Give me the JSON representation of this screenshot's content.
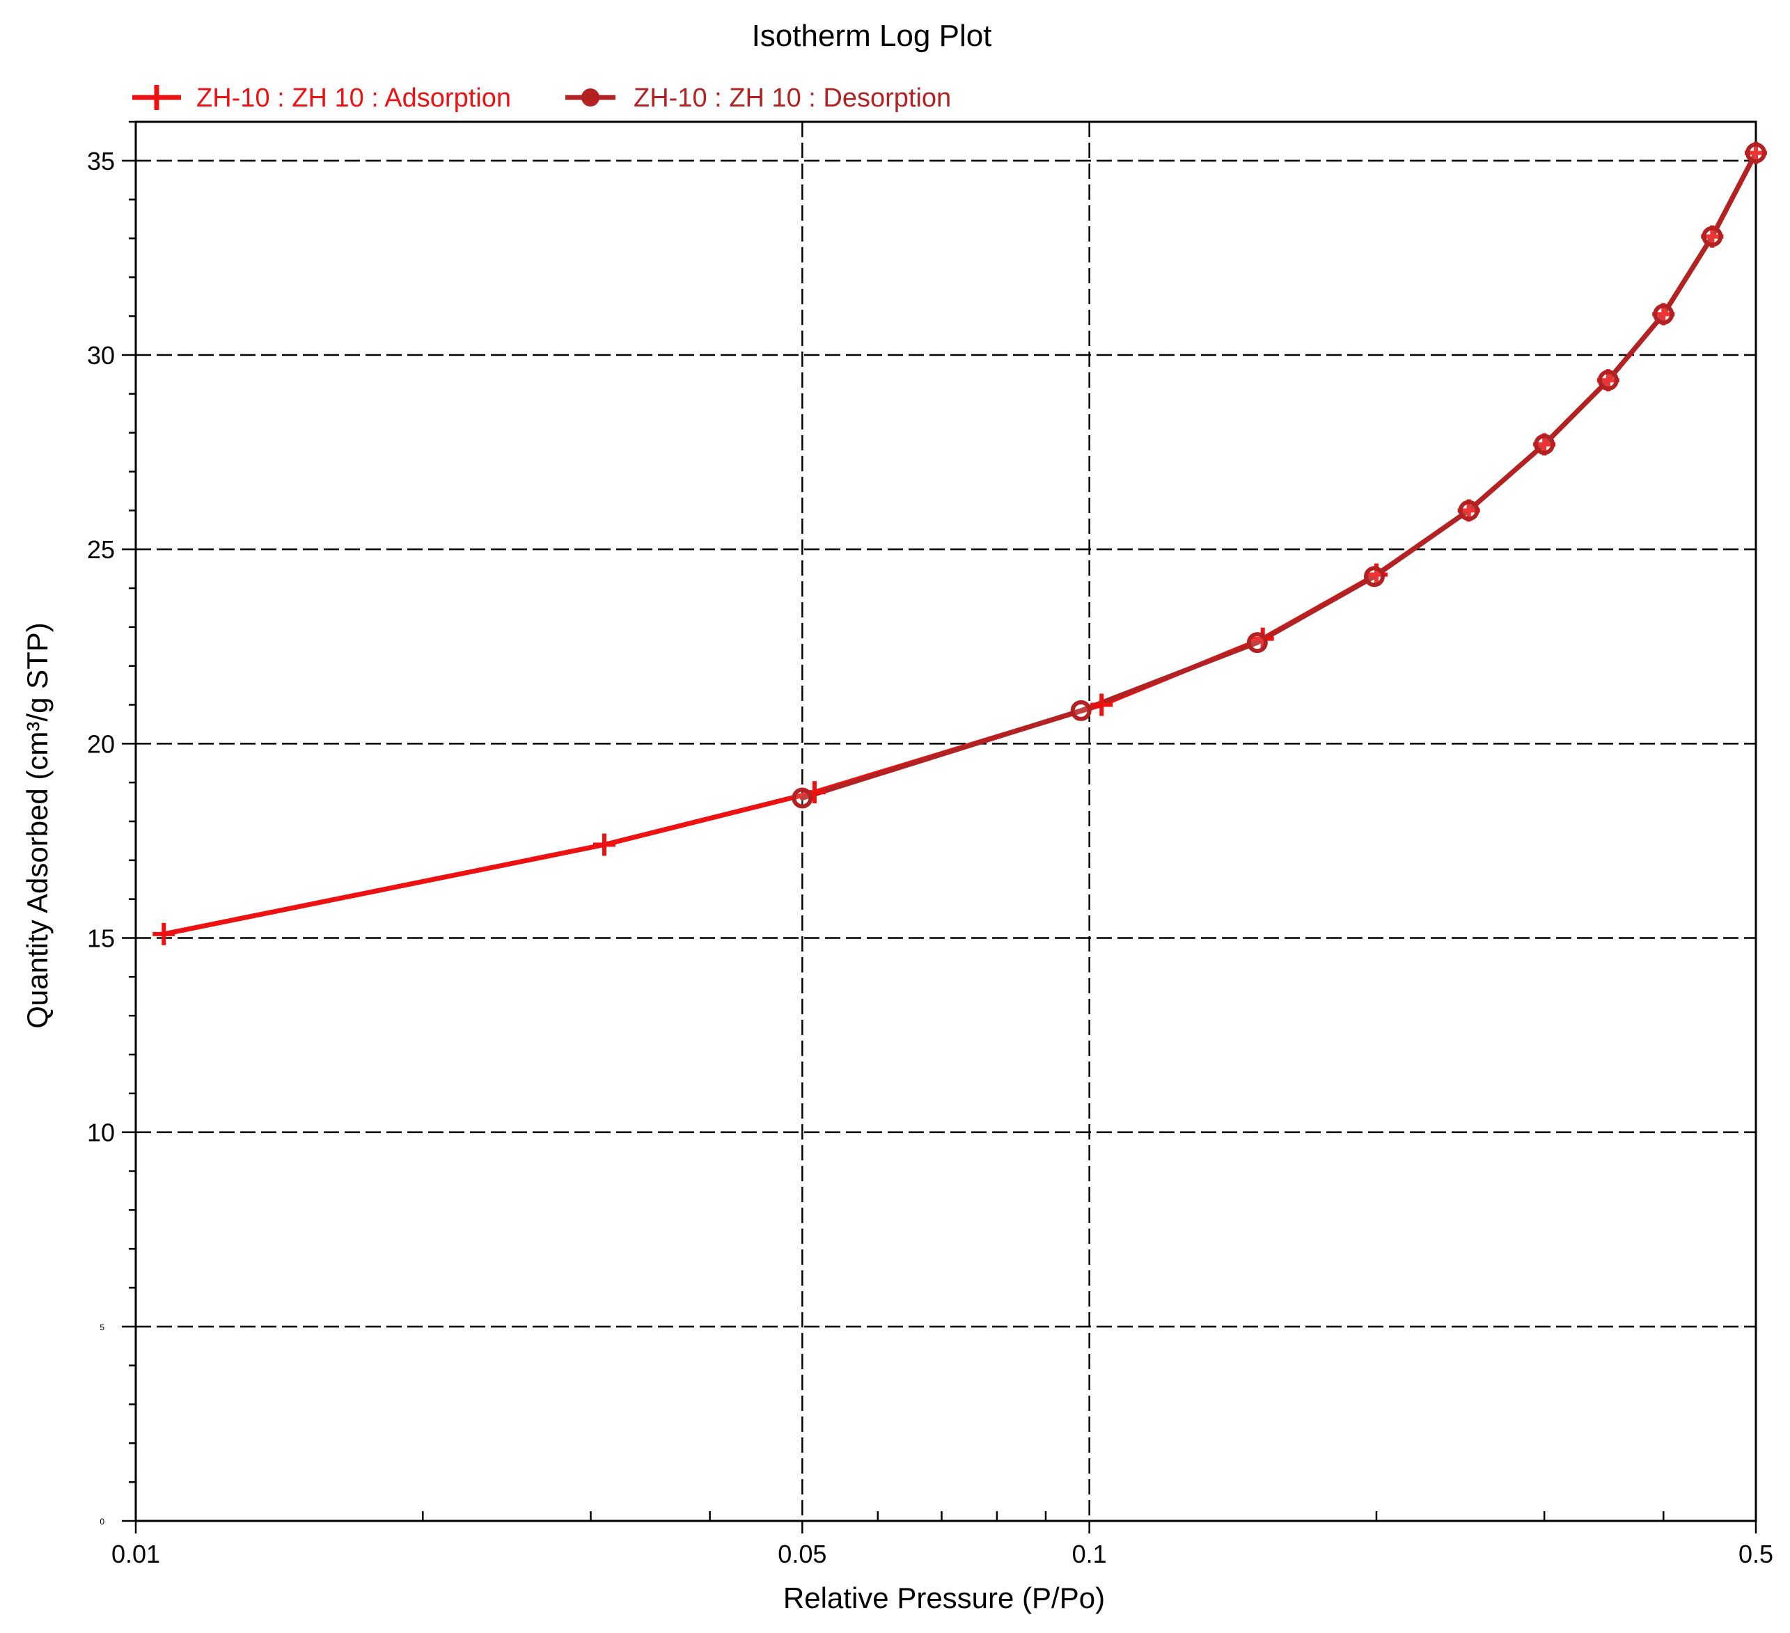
{
  "chart_data": {
    "type": "line",
    "title": "Isotherm Log Plot",
    "xlabel": "Relative Pressure (P/Po)",
    "ylabel": "Quantity Adsorbed (cm³/g STP)",
    "x_scale": "log",
    "xlim": [
      0.01,
      0.5
    ],
    "ylim": [
      0,
      36
    ],
    "x_ticks": [
      {
        "value": 0.01,
        "label": "0.01"
      },
      {
        "value": 0.05,
        "label": "0.05"
      },
      {
        "value": 0.1,
        "label": "0.1"
      },
      {
        "value": 0.5,
        "label": "0.5"
      }
    ],
    "x_minor_ticks": [
      0.02,
      0.03,
      0.04,
      0.06,
      0.07,
      0.08,
      0.09,
      0.2,
      0.3,
      0.4
    ],
    "y_ticks": [
      {
        "value": 0,
        "label": "0"
      },
      {
        "value": 5,
        "label": "5"
      },
      {
        "value": 10,
        "label": "10"
      },
      {
        "value": 15,
        "label": "15"
      },
      {
        "value": 20,
        "label": "20"
      },
      {
        "value": 25,
        "label": "25"
      },
      {
        "value": 30,
        "label": "30"
      },
      {
        "value": 35,
        "label": "35"
      }
    ],
    "y_minor_step": 1,
    "grid": true,
    "legend_position": "top-left",
    "series": [
      {
        "name": "ZH-10 : ZH 10 : Adsorption",
        "color": "#ee1111",
        "marker": "plus",
        "x": [
          0.0107,
          0.031,
          0.0515,
          0.103,
          0.152,
          0.2,
          0.25,
          0.3,
          0.35,
          0.4,
          0.45,
          0.5
        ],
        "y": [
          15.1,
          17.4,
          18.75,
          21.0,
          22.7,
          24.35,
          26.0,
          27.7,
          29.35,
          31.05,
          33.05,
          35.2
        ]
      },
      {
        "name": "ZH-10 : ZH 10 : Desorption",
        "color": "#b22222",
        "marker": "circle",
        "x": [
          0.05,
          0.098,
          0.15,
          0.199,
          0.25,
          0.3,
          0.35,
          0.4,
          0.45,
          0.5
        ],
        "y": [
          18.6,
          20.85,
          22.6,
          24.3,
          26.0,
          27.7,
          29.35,
          31.05,
          33.05,
          35.2
        ]
      }
    ]
  }
}
